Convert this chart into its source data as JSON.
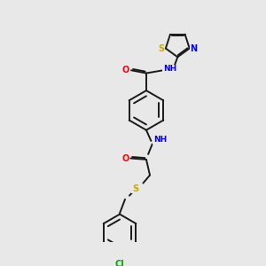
{
  "bg_color": "#e8e8e8",
  "bond_color": "#1a1a1a",
  "atom_colors": {
    "O": "#ff0000",
    "N": "#0000ff",
    "S": "#ccaa00",
    "Cl": "#00aa00",
    "C": "#1a1a1a",
    "H": "#555555"
  },
  "figsize": [
    3.0,
    3.0
  ],
  "dpi": 100,
  "lw": 1.4
}
